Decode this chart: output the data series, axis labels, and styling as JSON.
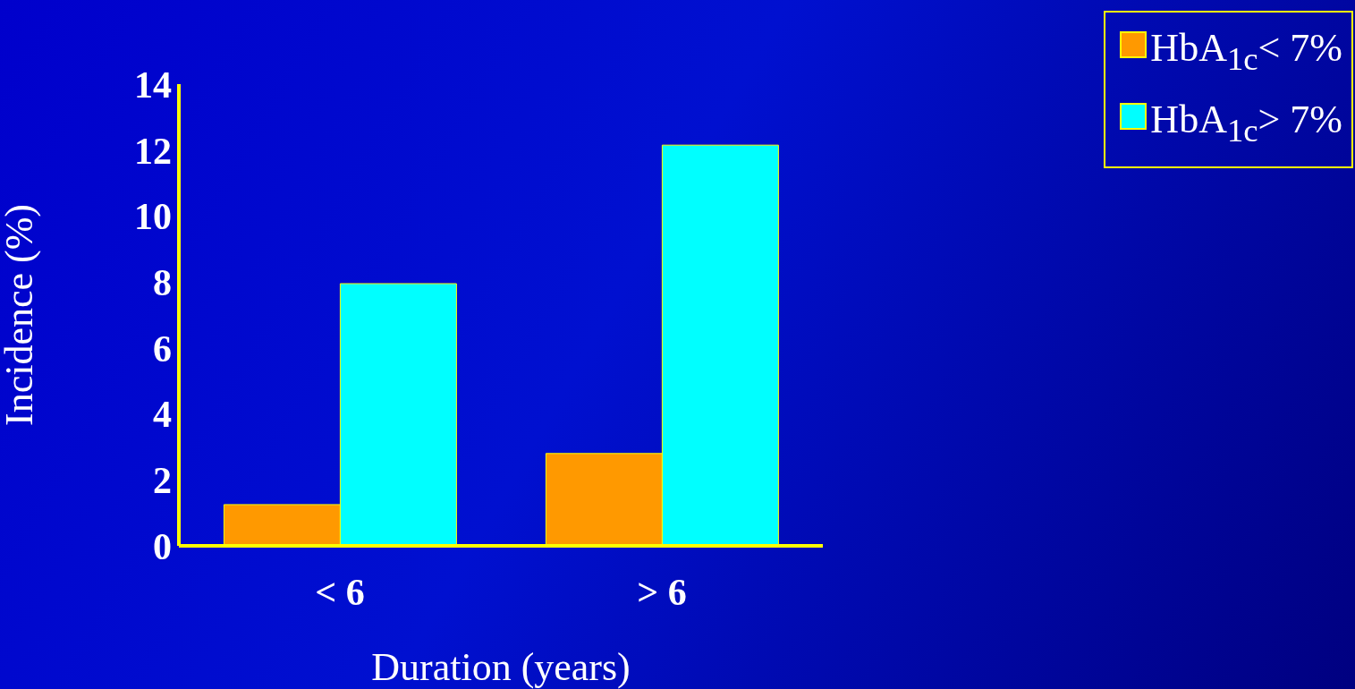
{
  "chart_data": {
    "type": "bar",
    "xlabel": "Duration (years)",
    "ylabel": "Incidence (%)",
    "categories": [
      "< 6",
      "> 6"
    ],
    "series": [
      {
        "name": "HbA$_{1c}$< 7%",
        "color": "#ff9900",
        "values": [
          1.25,
          2.8
        ]
      },
      {
        "name": "HbA$_{1c}$> 7%",
        "color": "#00ffff",
        "values": [
          7.95,
          12.15
        ]
      }
    ],
    "ylim": [
      0,
      14
    ],
    "yticks": [
      0,
      2,
      4,
      6,
      8,
      10,
      12,
      14
    ],
    "grid": false,
    "legend": "top right"
  }
}
